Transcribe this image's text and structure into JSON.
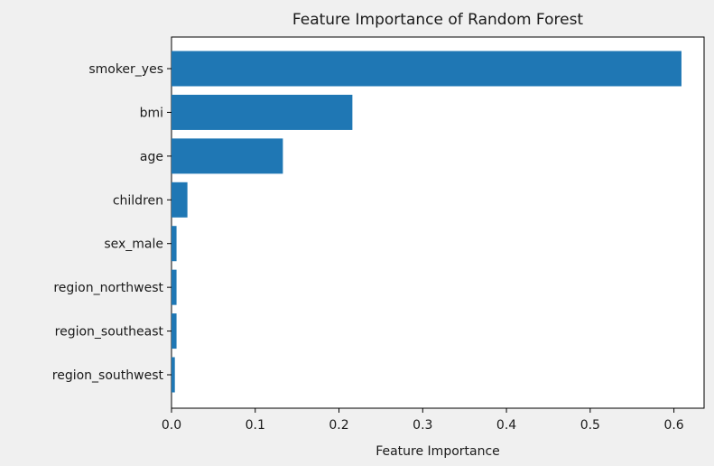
{
  "chart_data": {
    "type": "bar",
    "orientation": "horizontal",
    "title": "Feature Importance of Random Forest",
    "xlabel": "Feature Importance",
    "ylabel": "",
    "categories": [
      "smoker_yes",
      "bmi",
      "age",
      "children",
      "sex_male",
      "region_northwest",
      "region_southeast",
      "region_southwest"
    ],
    "values": [
      0.609,
      0.216,
      0.133,
      0.019,
      0.006,
      0.006,
      0.006,
      0.004
    ],
    "xlim": [
      0,
      0.636
    ],
    "xticks": [
      0.0,
      0.1,
      0.2,
      0.3,
      0.4,
      0.5,
      0.6
    ],
    "xtick_labels": [
      "0.0",
      "0.1",
      "0.2",
      "0.3",
      "0.4",
      "0.5",
      "0.6"
    ],
    "bar_color": "#1f77b4",
    "grid": false,
    "legend": "none",
    "background_color": "#f0f0f0",
    "plot_background_color": "#ffffff"
  }
}
